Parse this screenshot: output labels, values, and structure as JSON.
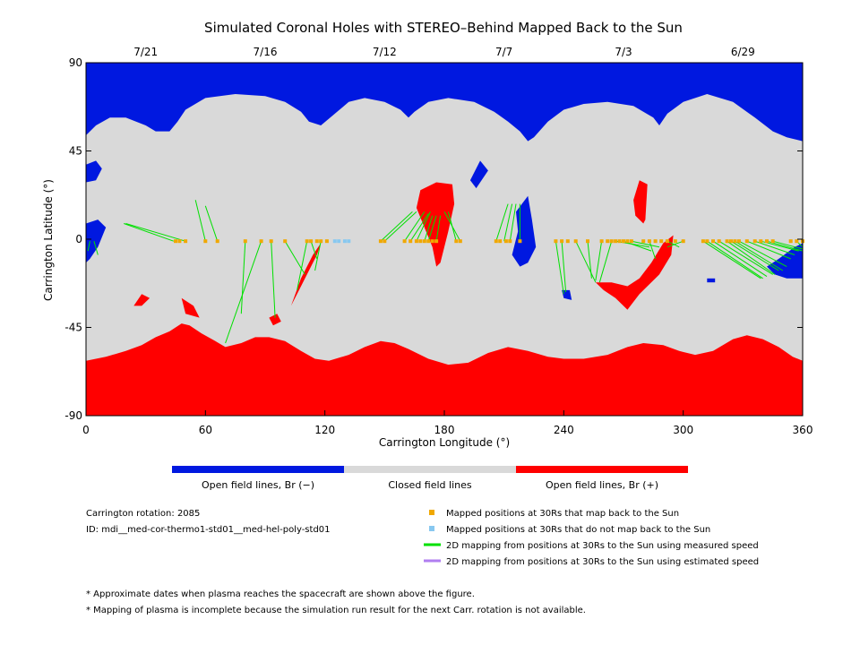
{
  "chart_data": {
    "type": "map",
    "title": "Simulated Coronal Holes with STEREO–Behind Mapped Back to the Sun",
    "xlabel": "Carrington Longitude (°)",
    "ylabel": "Carrington Latitude (°)",
    "xlim": [
      0,
      360
    ],
    "ylim": [
      -90,
      90
    ],
    "x_ticks": [
      0,
      60,
      120,
      180,
      240,
      300,
      360
    ],
    "y_ticks": [
      90,
      45,
      0,
      -45,
      -90
    ],
    "top_axis_dates": [
      {
        "label": "7/21",
        "lon": 30
      },
      {
        "label": "7/16",
        "lon": 90
      },
      {
        "label": "7/12",
        "lon": 150
      },
      {
        "label": "7/7",
        "lon": 210
      },
      {
        "label": "7/3",
        "lon": 270
      },
      {
        "label": "6/29",
        "lon": 330
      }
    ],
    "regions": {
      "north_open_neg": {
        "label": "Open field lines, Br (−)",
        "color": "#0018e0"
      },
      "closed": {
        "label": "Closed field lines",
        "color": "#d9d9d9"
      },
      "south_open_pos": {
        "label": "Open field lines, Br (+)",
        "color": "#ff0000"
      }
    },
    "boundaries": {
      "north": [
        [
          0,
          53
        ],
        [
          5,
          58
        ],
        [
          12,
          62
        ],
        [
          20,
          62
        ],
        [
          30,
          58
        ],
        [
          35,
          55
        ],
        [
          42,
          55
        ],
        [
          46,
          60
        ],
        [
          50,
          66
        ],
        [
          60,
          72
        ],
        [
          75,
          74
        ],
        [
          90,
          73
        ],
        [
          100,
          70
        ],
        [
          108,
          65
        ],
        [
          112,
          60
        ],
        [
          118,
          58
        ],
        [
          125,
          64
        ],
        [
          132,
          70
        ],
        [
          140,
          72
        ],
        [
          150,
          70
        ],
        [
          158,
          66
        ],
        [
          162,
          62
        ],
        [
          165,
          65
        ],
        [
          172,
          70
        ],
        [
          182,
          72
        ],
        [
          195,
          70
        ],
        [
          205,
          65
        ],
        [
          212,
          60
        ],
        [
          218,
          55
        ],
        [
          222,
          50
        ],
        [
          225,
          52
        ],
        [
          232,
          60
        ],
        [
          240,
          66
        ],
        [
          250,
          69
        ],
        [
          262,
          70
        ],
        [
          275,
          68
        ],
        [
          285,
          62
        ],
        [
          288,
          58
        ],
        [
          292,
          64
        ],
        [
          300,
          70
        ],
        [
          312,
          74
        ],
        [
          325,
          70
        ],
        [
          336,
          62
        ],
        [
          345,
          55
        ],
        [
          352,
          52
        ],
        [
          360,
          50
        ]
      ],
      "south": [
        [
          0,
          -62
        ],
        [
          10,
          -60
        ],
        [
          20,
          -57
        ],
        [
          28,
          -54
        ],
        [
          35,
          -50
        ],
        [
          42,
          -47
        ],
        [
          48,
          -43
        ],
        [
          52,
          -44
        ],
        [
          58,
          -48
        ],
        [
          65,
          -52
        ],
        [
          70,
          -55
        ],
        [
          78,
          -53
        ],
        [
          85,
          -50
        ],
        [
          92,
          -50
        ],
        [
          100,
          -52
        ],
        [
          108,
          -57
        ],
        [
          115,
          -61
        ],
        [
          122,
          -62
        ],
        [
          132,
          -59
        ],
        [
          140,
          -55
        ],
        [
          148,
          -52
        ],
        [
          155,
          -53
        ],
        [
          162,
          -56
        ],
        [
          172,
          -61
        ],
        [
          182,
          -64
        ],
        [
          192,
          -63
        ],
        [
          202,
          -58
        ],
        [
          212,
          -55
        ],
        [
          222,
          -57
        ],
        [
          232,
          -60
        ],
        [
          240,
          -61
        ],
        [
          250,
          -61
        ],
        [
          262,
          -59
        ],
        [
          272,
          -55
        ],
        [
          280,
          -53
        ],
        [
          290,
          -54
        ],
        [
          298,
          -57
        ],
        [
          306,
          -59
        ],
        [
          315,
          -57
        ],
        [
          325,
          -51
        ],
        [
          332,
          -49
        ],
        [
          340,
          -51
        ],
        [
          348,
          -55
        ],
        [
          355,
          -60
        ],
        [
          360,
          -62
        ]
      ],
      "patches_neg": [
        [
          [
            0,
            38
          ],
          [
            5,
            40
          ],
          [
            8,
            36
          ],
          [
            5,
            30
          ],
          [
            0,
            29
          ]
        ],
        [
          [
            0,
            8
          ],
          [
            6,
            10
          ],
          [
            10,
            6
          ],
          [
            6,
            -4
          ],
          [
            2,
            -10
          ],
          [
            0,
            -12
          ]
        ],
        [
          [
            193,
            30
          ],
          [
            198,
            40
          ],
          [
            202,
            35
          ],
          [
            196,
            26
          ]
        ],
        [
          [
            216,
            14
          ],
          [
            222,
            22
          ],
          [
            224,
            10
          ],
          [
            226,
            -4
          ],
          [
            222,
            -12
          ],
          [
            218,
            -14
          ],
          [
            214,
            -8
          ],
          [
            217,
            4
          ]
        ],
        [
          [
            342,
            -14
          ],
          [
            348,
            -10
          ],
          [
            356,
            -4
          ],
          [
            360,
            -2
          ],
          [
            360,
            -20
          ],
          [
            352,
            -20
          ],
          [
            346,
            -18
          ]
        ],
        [
          [
            312,
            -20
          ],
          [
            316,
            -20
          ],
          [
            316,
            -22
          ],
          [
            312,
            -22
          ]
        ],
        [
          [
            239,
            -26
          ],
          [
            243,
            -26
          ],
          [
            244,
            -31
          ],
          [
            240,
            -30
          ]
        ]
      ],
      "patches_pos": [
        [
          [
            168,
            25
          ],
          [
            176,
            29
          ],
          [
            184,
            28
          ],
          [
            185,
            18
          ],
          [
            182,
            4
          ],
          [
            178,
            -12
          ],
          [
            176,
            -14
          ],
          [
            174,
            -4
          ],
          [
            170,
            6
          ],
          [
            166,
            16
          ]
        ],
        [
          [
            275,
            20
          ],
          [
            278,
            30
          ],
          [
            282,
            28
          ],
          [
            281,
            10
          ],
          [
            280,
            8
          ],
          [
            276,
            12
          ]
        ],
        [
          [
            256,
            -22
          ],
          [
            264,
            -22
          ],
          [
            272,
            -24
          ],
          [
            278,
            -20
          ],
          [
            284,
            -12
          ],
          [
            290,
            -2
          ],
          [
            295,
            2
          ],
          [
            294,
            -8
          ],
          [
            288,
            -18
          ],
          [
            278,
            -28
          ],
          [
            272,
            -36
          ],
          [
            266,
            -30
          ],
          [
            260,
            -26
          ]
        ],
        [
          [
            103,
            -34
          ],
          [
            108,
            -20
          ],
          [
            114,
            -8
          ],
          [
            118,
            -2
          ],
          [
            116,
            -8
          ],
          [
            112,
            -16
          ],
          [
            106,
            -28
          ]
        ],
        [
          [
            92,
            -40
          ],
          [
            96,
            -38
          ],
          [
            98,
            -42
          ],
          [
            94,
            -44
          ]
        ],
        [
          [
            24,
            -34
          ],
          [
            28,
            -28
          ],
          [
            32,
            -30
          ],
          [
            28,
            -34
          ]
        ],
        [
          [
            48,
            -30
          ],
          [
            54,
            -34
          ],
          [
            57,
            -40
          ],
          [
            50,
            -38
          ]
        ]
      ]
    },
    "mapped_points": {
      "mapped_back": [
        45,
        47,
        50,
        60,
        66,
        80,
        88,
        93,
        100,
        111,
        113,
        116,
        118,
        121,
        148,
        150,
        160,
        163,
        166,
        168,
        170,
        172,
        174,
        176,
        186,
        188,
        206,
        208,
        211,
        213,
        218,
        236,
        239,
        242,
        246,
        252,
        259,
        262,
        264,
        266,
        268,
        270,
        272,
        274,
        280,
        283,
        286,
        289,
        292,
        296,
        300,
        310,
        312,
        315,
        318,
        322,
        324,
        326,
        328,
        332,
        336,
        339,
        342,
        345,
        354,
        357,
        360
      ],
      "not_mapped_back": [
        125,
        127,
        130,
        132
      ]
    },
    "mapping_lines": [
      [
        44,
        -1,
        19,
        8
      ],
      [
        50,
        -1,
        20,
        8
      ],
      [
        60,
        -1,
        55,
        20
      ],
      [
        66,
        -1,
        60,
        17
      ],
      [
        80,
        -1,
        78,
        -38
      ],
      [
        88,
        -1,
        70,
        -53
      ],
      [
        93,
        -1,
        95,
        -40
      ],
      [
        100,
        -1,
        110,
        -18
      ],
      [
        111,
        -1,
        106,
        -26
      ],
      [
        113,
        -1,
        116,
        -10
      ],
      [
        118,
        -1,
        115,
        -16
      ],
      [
        148,
        -1,
        164,
        14
      ],
      [
        150,
        -1,
        166,
        14
      ],
      [
        160,
        -1,
        170,
        14
      ],
      [
        163,
        -1,
        172,
        13
      ],
      [
        166,
        -1,
        173,
        14
      ],
      [
        170,
        -1,
        174,
        12
      ],
      [
        172,
        -1,
        176,
        12
      ],
      [
        176,
        -1,
        178,
        12
      ],
      [
        186,
        -1,
        182,
        14
      ],
      [
        188,
        -1,
        180,
        14
      ],
      [
        206,
        -1,
        212,
        18
      ],
      [
        210,
        -1,
        214,
        18
      ],
      [
        213,
        -1,
        216,
        18
      ],
      [
        218,
        -1,
        218,
        18
      ],
      [
        236,
        -1,
        240,
        -28
      ],
      [
        239,
        -1,
        241,
        -27
      ],
      [
        246,
        -1,
        256,
        -22
      ],
      [
        252,
        -1,
        254,
        -20
      ],
      [
        259,
        -1,
        256,
        -21
      ],
      [
        264,
        -1,
        258,
        -22
      ],
      [
        266,
        -1,
        283,
        -4
      ],
      [
        270,
        -1,
        284,
        -6
      ],
      [
        274,
        -1,
        288,
        -4
      ],
      [
        283,
        -1,
        286,
        -10
      ],
      [
        292,
        -1,
        298,
        -4
      ],
      [
        300,
        -1,
        292,
        -4
      ],
      [
        310,
        -1,
        339,
        -20
      ],
      [
        312,
        -1,
        340,
        -20
      ],
      [
        315,
        -1,
        342,
        -19
      ],
      [
        318,
        -1,
        345,
        -18
      ],
      [
        322,
        -1,
        346,
        -18
      ],
      [
        324,
        -1,
        348,
        -16
      ],
      [
        326,
        -1,
        350,
        -16
      ],
      [
        328,
        -1,
        352,
        -14
      ],
      [
        332,
        -1,
        354,
        -10
      ],
      [
        336,
        -1,
        356,
        -8
      ],
      [
        339,
        -1,
        358,
        -6
      ],
      [
        342,
        -1,
        360,
        -6
      ],
      [
        345,
        -1,
        360,
        -5
      ],
      [
        357,
        -1,
        360,
        -4
      ],
      [
        2,
        -1,
        1,
        -6
      ],
      [
        4,
        -1,
        6,
        -8
      ]
    ]
  },
  "legend": {
    "colorbar": [
      {
        "label": "Open field lines, Br (−)",
        "color": "#0018e0"
      },
      {
        "label": "Closed field lines",
        "color": "#d9d9d9"
      },
      {
        "label": "Open field lines, Br (+)",
        "color": "#ff0000"
      }
    ],
    "symbols": [
      {
        "label": "Mapped positions at 30Rs that map back to the Sun",
        "color": "#f0a800",
        "kind": "square"
      },
      {
        "label": "Mapped positions at 30Rs that do not map back to the Sun",
        "color": "#88c8f0",
        "kind": "square"
      },
      {
        "label": "2D mapping from positions at 30Rs to the Sun using measured speed",
        "color": "#00e000",
        "kind": "line"
      },
      {
        "label": "2D mapping from positions at 30Rs to the Sun using estimated speed",
        "color": "#b07ef0",
        "kind": "line"
      }
    ]
  },
  "info": {
    "rotation": "Carrington rotation: 2085",
    "id": "ID: mdi__med-cor-thermo1-std01__med-hel-poly-std01"
  },
  "notes": [
    "* Approximate dates when plasma reaches the spacecraft are shown above the figure.",
    "* Mapping of plasma is incomplete because the simulation run result for the next Carr. rotation is not available."
  ]
}
